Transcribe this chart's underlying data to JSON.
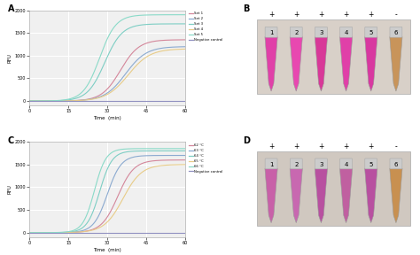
{
  "panel_A_title": "A",
  "panel_B_title": "B",
  "panel_C_title": "C",
  "panel_D_title": "D",
  "xlabel": "Time  (min)",
  "ylabel": "RFU",
  "xmax": 60,
  "ymax_A": 2000,
  "ymax_C": 2000,
  "yticks_A": [
    0,
    500,
    1000,
    1500,
    2000
  ],
  "yticks_C": [
    0,
    500,
    1000,
    1500,
    2000
  ],
  "xticks": [
    0,
    15,
    30,
    45,
    60
  ],
  "legend_A": [
    "Set 1",
    "Set 2",
    "Set 3",
    "Set 4",
    "Set 5",
    "Negative control"
  ],
  "legend_C": [
    "62 °C",
    "63 °C",
    "64 °C",
    "65 °C",
    "66 °C",
    "Negative control"
  ],
  "colors_A": [
    "#d4869a",
    "#8baad0",
    "#7dcec4",
    "#e8cc88",
    "#8adac8",
    "#9090c0"
  ],
  "colors_C": [
    "#d4869a",
    "#8baad0",
    "#7dcec4",
    "#e8cc88",
    "#8adac8",
    "#9090c0"
  ],
  "bg_color": "#f0f0f0",
  "grid_color": "#ffffff",
  "tube_colors_B": [
    "#e040a8",
    "#e848b0",
    "#d83898",
    "#e040a8",
    "#d838a0",
    "#c8945a"
  ],
  "tube_colors_D": [
    "#c860a8",
    "#c868b0",
    "#b850a0",
    "#c060a0",
    "#b850a0",
    "#c89050"
  ],
  "tube_signs": [
    "+",
    "+",
    "+",
    "+",
    "+",
    "-"
  ],
  "tube_labels": [
    "1",
    "2",
    "3",
    "4",
    "5",
    "6"
  ],
  "photo_bg_B": "#d8d0c8",
  "photo_bg_D": "#d0c8c0"
}
